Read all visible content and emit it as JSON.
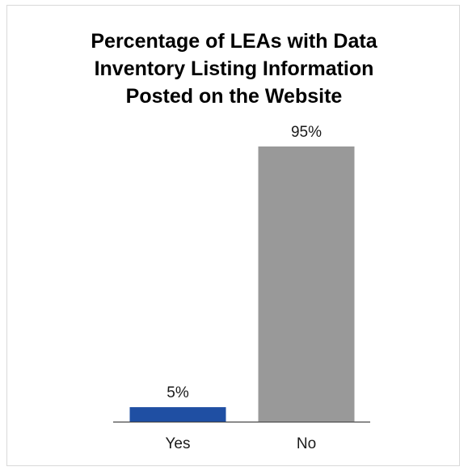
{
  "chart_data": {
    "type": "bar",
    "title": "Percentage of LEAs with Data Inventory Listing Information Posted on the Website",
    "categories": [
      "Yes",
      "No"
    ],
    "values": [
      5,
      95
    ],
    "value_labels": [
      "5%",
      "95%"
    ],
    "ylim": [
      0,
      100
    ],
    "grid": false,
    "colors": [
      "#1f4fa3",
      "#999999"
    ]
  }
}
